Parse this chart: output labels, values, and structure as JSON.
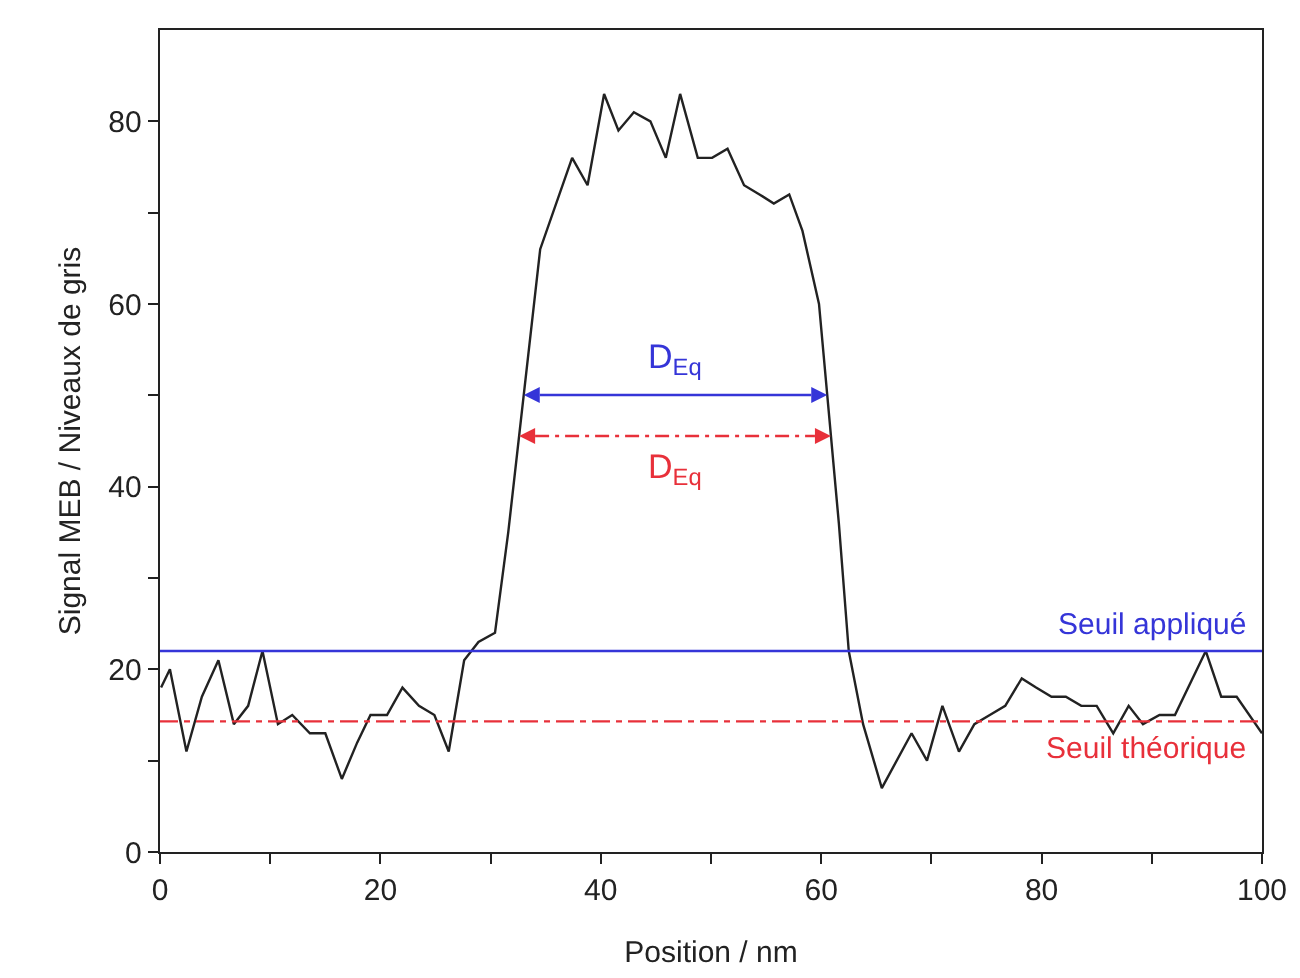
{
  "chart_data": {
    "type": "line",
    "xlabel": "Position / nm",
    "ylabel": "Signal MEB / Niveaux de gris",
    "x": [
      0.1,
      0.9,
      2.4,
      3.8,
      5.3,
      6.7,
      8,
      9.3,
      10.7,
      12,
      13.6,
      15,
      16.5,
      17.9,
      19.1,
      20.6,
      22,
      23.5,
      24.9,
      26.2,
      27.6,
      28.9,
      30.4,
      31.6,
      34.5,
      37.4,
      38.8,
      40.3,
      41.6,
      43,
      44.5,
      45.9,
      47.2,
      48.8,
      50.1,
      51.5,
      53,
      54.4,
      55.7,
      57.1,
      58.3,
      59.8,
      61.6,
      62.5,
      63.8,
      65.5,
      68.2,
      69.6,
      71,
      72.5,
      73.9,
      75.3,
      76.7,
      78.2,
      79.5,
      80.9,
      82.2,
      83.6,
      85,
      86.5,
      87.9,
      89.2,
      90.7,
      92.1,
      94.9,
      96.3,
      97.7,
      100
    ],
    "series": [
      {
        "color": "#222222",
        "values": [
          18,
          20,
          11,
          17,
          21,
          14,
          16,
          22,
          14,
          15,
          13,
          13,
          8,
          12,
          15,
          15,
          18,
          16,
          15,
          11,
          21,
          23,
          24,
          35,
          66,
          76,
          73,
          83,
          79,
          81,
          80,
          76,
          83,
          76,
          76,
          77,
          73,
          72,
          71,
          72,
          68,
          60,
          36,
          22,
          14,
          7,
          13,
          10,
          16,
          11,
          14,
          15,
          16,
          19,
          18,
          17,
          17,
          16,
          16,
          13,
          16,
          14,
          15,
          15,
          22,
          17,
          17,
          13
        ]
      }
    ],
    "annotations": [
      "D$_{Eq}$",
      "D$_{Eq}$"
    ],
    "xlim": [
      0,
      100
    ],
    "ylim": [
      0,
      90
    ],
    "xticks": [
      0,
      {
        "value": 10,
        "label": null
      },
      20,
      {
        "value": 30,
        "label": null
      },
      40,
      {
        "value": 50,
        "label": null
      },
      60,
      {
        "value": 70,
        "label": null
      },
      80,
      {
        "value": 90,
        "label": null
      },
      100
    ],
    "yticks": [
      0,
      {
        "value": 10,
        "label": null
      },
      20,
      {
        "value": 30,
        "label": null
      },
      40,
      {
        "value": 50,
        "label": null
      },
      60,
      {
        "value": 70,
        "label": null
      },
      80
    ],
    "ref_lines": [
      {
        "axis": "y",
        "value": 22,
        "label": "Seuil appliqué",
        "color": "#3535d8",
        "line_style": "solid"
      },
      {
        "axis": "y",
        "value": 14.3,
        "label": "Seuil théorique",
        "color": "#e8303a",
        "line_style": "dashdot"
      }
    ],
    "grid": false
  }
}
